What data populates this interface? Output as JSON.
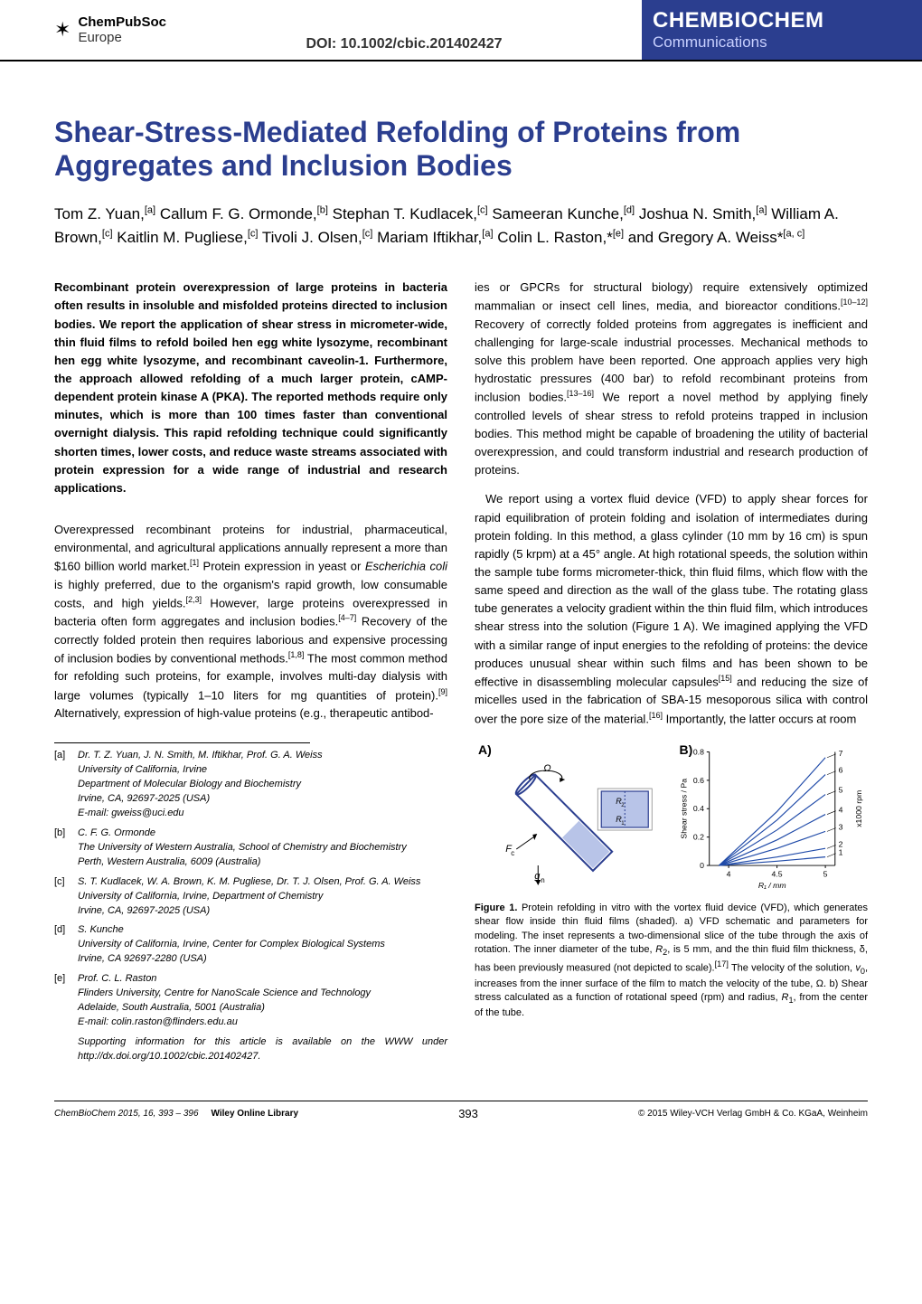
{
  "header": {
    "pubsoc_top": "ChemPubSoc",
    "pubsoc_bottom": "Europe",
    "doi": "DOI: 10.1002/cbic.201402427",
    "journal_name_pre": "CHEM",
    "journal_name_bio": "BIO",
    "journal_name_post": "CHEM",
    "journal_sub": "Communications",
    "band_color": "#2b3e8f"
  },
  "title": "Shear-Stress-Mediated Refolding of Proteins from Aggregates and Inclusion Bodies",
  "authors_html": "Tom Z. Yuan,<sup>[a]</sup> Callum F. G. Ormonde,<sup>[b]</sup> Stephan T. Kudlacek,<sup>[c]</sup> Sameeran Kunche,<sup>[d]</sup> Joshua N. Smith,<sup>[a]</sup> William A. Brown,<sup>[c]</sup> Kaitlin M. Pugliese,<sup>[c]</sup> Tivoli J. Olsen,<sup>[c]</sup> Mariam Iftikhar,<sup>[a]</sup> Colin L. Raston,*<sup>[e]</sup> and Gregory A. Weiss*<sup>[a, c]</sup>",
  "abstract": "Recombinant protein overexpression of large proteins in bacteria often results in insoluble and misfolded proteins directed to inclusion bodies. We report the application of shear stress in micrometer-wide, thin fluid films to refold boiled hen egg white lysozyme, recombinant hen egg white lysozyme, and recombinant caveolin-1. Furthermore, the approach allowed refolding of a much larger protein, cAMP-dependent protein kinase A (PKA). The reported methods require only minutes, which is more than 100 times faster than conventional overnight dialysis. This rapid refolding technique could significantly shorten times, lower costs, and reduce waste streams associated with protein expression for a wide range of industrial and research applications.",
  "body_left": "Overexpressed recombinant proteins for industrial, pharmaceutical, environmental, and agricultural applications annually represent a more than $160 billion world market.<sup class='ref'>[1]</sup> Protein expression in yeast or <i>Escherichia coli</i> is highly preferred, due to the organism's rapid growth, low consumable costs, and high yields.<sup class='ref'>[2,3]</sup> However, large proteins overexpressed in bacteria often form aggregates and inclusion bodies.<sup class='ref'>[4–7]</sup> Recovery of the correctly folded protein then requires laborious and expensive processing of inclusion bodies by conventional methods.<sup class='ref'>[1,8]</sup> The most common method for refolding such proteins, for example, involves multi-day dialysis with large volumes (typically 1–10 liters for mg quantities of protein).<sup class='ref'>[9]</sup> Alternatively, expression of high-value proteins (e.g., therapeutic antibod-",
  "body_right_p1": "ies or GPCRs for structural biology) require extensively optimized mammalian or insect cell lines, media, and bioreactor conditions.<sup class='ref'>[10–12]</sup> Recovery of correctly folded proteins from aggregates is inefficient and challenging for large-scale industrial processes. Mechanical methods to solve this problem have been reported. One approach applies very high hydrostatic pressures (400 bar) to refold recombinant proteins from inclusion bodies.<sup class='ref'>[13–16]</sup> We report a novel method by applying finely controlled levels of shear stress to refold proteins trapped in inclusion bodies. This method might be capable of broadening the utility of bacterial overexpression, and could transform industrial and research production of proteins.",
  "body_right_p2": "We report using a vortex fluid device (VFD) to apply shear forces for rapid equilibration of protein folding and isolation of intermediates during protein folding. In this method, a glass cylinder (10 mm by 16 cm) is spun rapidly (5 krpm) at a 45° angle. At high rotational speeds, the solution within the sample tube forms micrometer-thick, thin fluid films, which flow with the same speed and direction as the wall of the glass tube. The rotating glass tube generates a velocity gradient within the thin fluid film, which introduces shear stress into the solution (Figure 1 A). We imagined applying the VFD with a similar range of input energies to the refolding of proteins: the device produces unusual shear within such films and has been shown to be effective in disassembling molecular capsules<sup class='ref'>[15]</sup> and reducing the size of micelles used in the fabrication of SBA-15 mesoporous silica with control over the pore size of the material.<sup class='ref'>[16]</sup> Importantly, the latter occurs at room",
  "affiliations": [
    {
      "tag": "[a]",
      "text": "Dr. T. Z. Yuan, J. N. Smith, M. Iftikhar, Prof. G. A. Weiss<br>University of California, Irvine<br>Department of Molecular Biology and Biochemistry<br>Irvine, CA, 92697-2025 (USA)<br>E-mail: gweiss@uci.edu"
    },
    {
      "tag": "[b]",
      "text": "C. F. G. Ormonde<br>The University of Western Australia, School of Chemistry and Biochemistry<br>Perth, Western Australia, 6009 (Australia)"
    },
    {
      "tag": "[c]",
      "text": "S. T. Kudlacek, W. A. Brown, K. M. Pugliese, Dr. T. J. Olsen, Prof. G. A. Weiss<br>University of California, Irvine, Department of Chemistry<br>Irvine, CA, 92697-2025 (USA)"
    },
    {
      "tag": "[d]",
      "text": "S. Kunche<br>University of California, Irvine, Center for Complex Biological Systems<br>Irvine, CA 92697-2280 (USA)"
    },
    {
      "tag": "[e]",
      "text": "Prof. C. L. Raston<br>Flinders University, Centre for NanoScale Science and Technology<br>Adelaide, South Australia, 5001 (Australia)<br>E-mail: colin.raston@flinders.edu.au"
    },
    {
      "tag": "",
      "text": "Supporting information for this article is available on the WWW under http://dx.doi.org/10.1002/cbic.201402427."
    }
  ],
  "figure1": {
    "panel_a": "A)",
    "panel_b": "B)",
    "caption": "<b>Figure 1.</b> Protein refolding in vitro with the vortex fluid device (VFD), which generates shear flow inside thin fluid films (shaded). a) VFD schematic and parameters for modeling. The inset represents a two-dimensional slice of the tube through the axis of rotation. The inner diameter of the tube, <i>R</i><sub>2</sub>, is 5 mm, and the thin fluid film thickness, δ, has been previously measured (not depicted to scale).<sup>[17]</sup> The velocity of the solution, <i>v</i><sub>0</sub>, increases from the inner surface of the film to match the velocity of the tube, Ω. b) Shear stress calculated as a function of rotational speed (rpm) and radius, <i>R</i><sub>1</sub>, from the center of the tube.",
    "chart_b": {
      "type": "line",
      "xlabel": "R₁ / mm",
      "ylabel": "Shear stress / Pa",
      "xlim": [
        3.8,
        5.1
      ],
      "ylim": [
        0,
        0.8
      ],
      "xticks": [
        4,
        4.5,
        5
      ],
      "yticks": [
        0,
        0.2,
        0.4,
        0.6,
        0.8
      ],
      "series": [
        {
          "label": "1",
          "color": "#1f4aa8",
          "x": [
            3.9,
            4.5,
            5.0
          ],
          "y": [
            0.0,
            0.03,
            0.06
          ]
        },
        {
          "label": "2",
          "color": "#1f4aa8",
          "x": [
            3.9,
            4.5,
            5.0
          ],
          "y": [
            0.0,
            0.06,
            0.12
          ]
        },
        {
          "label": "3",
          "color": "#1f4aa8",
          "x": [
            3.9,
            4.5,
            5.0
          ],
          "y": [
            0.0,
            0.12,
            0.24
          ]
        },
        {
          "label": "4",
          "color": "#1f4aa8",
          "x": [
            3.9,
            4.5,
            5.0
          ],
          "y": [
            0.0,
            0.18,
            0.36
          ]
        },
        {
          "label": "5",
          "color": "#1f4aa8",
          "x": [
            3.9,
            4.5,
            5.0
          ],
          "y": [
            0.0,
            0.25,
            0.5
          ]
        },
        {
          "label": "6",
          "color": "#1f4aa8",
          "x": [
            3.9,
            4.5,
            5.0
          ],
          "y": [
            0.0,
            0.32,
            0.64
          ]
        },
        {
          "label": "7",
          "color": "#1f4aa8",
          "x": [
            3.9,
            4.5,
            5.0
          ],
          "y": [
            0.0,
            0.38,
            0.76
          ]
        }
      ],
      "right_axis_label": "x1000 rpm",
      "axis_color": "#000000",
      "line_width": 1.2,
      "label_fontsize": 9
    },
    "schematic_a": {
      "tube_color": "#2b3e8f",
      "film_color": "#b8c4e8",
      "labels": [
        "Ω",
        "R₂",
        "R₁",
        "F_c",
        "g_n"
      ]
    }
  },
  "footer": {
    "citation": "ChemBioChem 2015, 16, 393 – 396",
    "wol": "Wiley Online Library",
    "pagenum": "393",
    "copyright": "© 2015 Wiley-VCH Verlag GmbH & Co. KGaA, Weinheim"
  }
}
